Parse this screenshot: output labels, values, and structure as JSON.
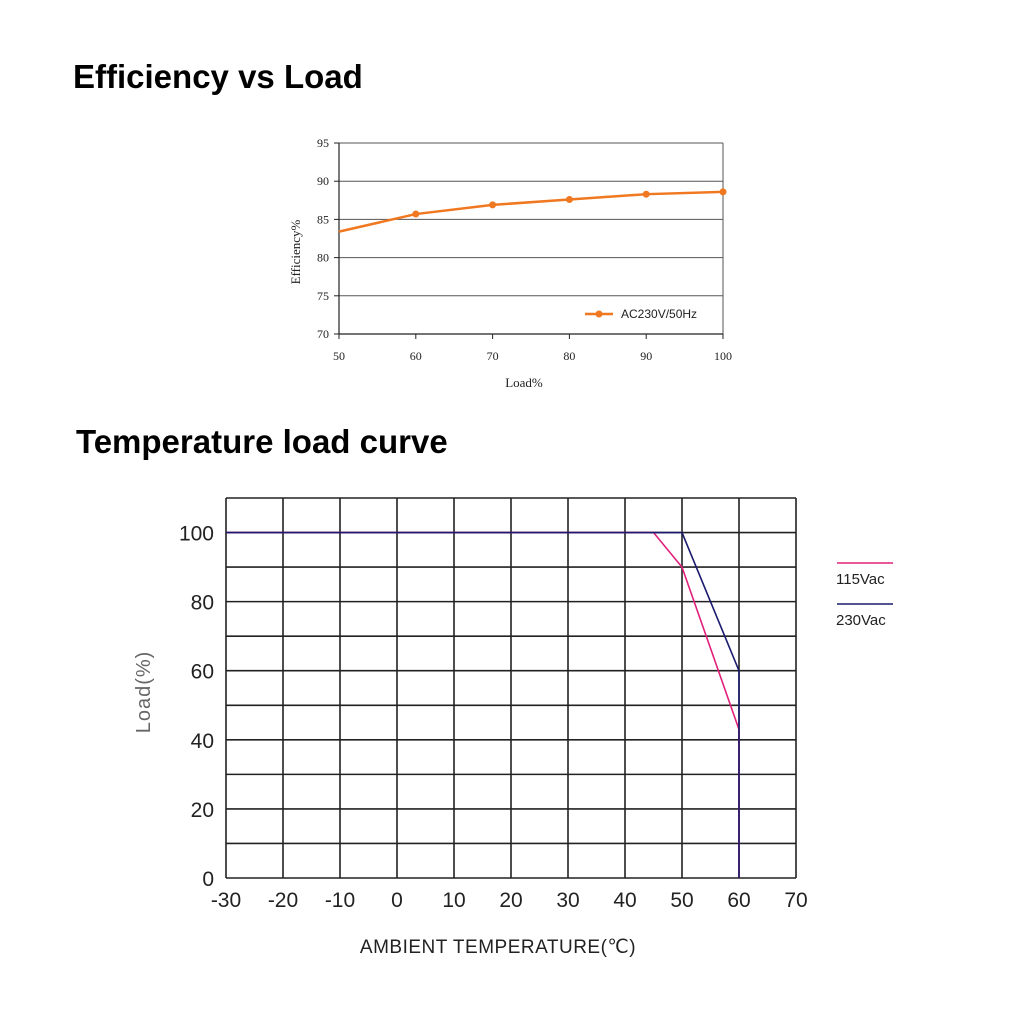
{
  "titles": {
    "efficiency": "Efficiency vs Load",
    "temperature": "Temperature load curve"
  },
  "colors": {
    "efficiency_line": "#f07820",
    "v115": "#e0207a",
    "v230": "#1a1a6e",
    "grid": "#222222",
    "axis_label_gray": "#666666"
  },
  "chart_data": [
    {
      "type": "line",
      "title": "",
      "xlabel": "Load%",
      "ylabel": "Efficiency%",
      "xlim": [
        50,
        100
      ],
      "ylim": [
        70,
        95
      ],
      "xticks": [
        "50",
        "60",
        "70",
        "80",
        "90",
        "100"
      ],
      "yticks": [
        "70",
        "75",
        "80",
        "85",
        "90",
        "95"
      ],
      "grid": "horizontal",
      "legend_position": "bottom-right",
      "series": [
        {
          "name": "AC230V/50Hz",
          "x": [
            50,
            60,
            70,
            80,
            90,
            100
          ],
          "y": [
            83.4,
            85.7,
            86.9,
            87.6,
            88.3,
            88.6
          ]
        }
      ]
    },
    {
      "type": "line",
      "title": "",
      "xlabel": "AMBIENT TEMPERATURE(℃)",
      "ylabel": "Load(%)",
      "xlim": [
        -30,
        70
      ],
      "ylim": [
        0,
        110
      ],
      "xticks": [
        "-30",
        "-20",
        "-10",
        "0",
        "10",
        "20",
        "30",
        "40",
        "50",
        "60",
        "70"
      ],
      "yticks": [
        "0",
        "20",
        "40",
        "60",
        "80",
        "100"
      ],
      "grid": "both",
      "legend_position": "right",
      "series": [
        {
          "name": "115Vac",
          "x": [
            -30,
            45,
            50,
            60,
            60
          ],
          "y": [
            100,
            100,
            90,
            43,
            0
          ]
        },
        {
          "name": "230Vac",
          "x": [
            -30,
            50,
            60,
            60
          ],
          "y": [
            100,
            100,
            60,
            0
          ]
        }
      ]
    }
  ]
}
